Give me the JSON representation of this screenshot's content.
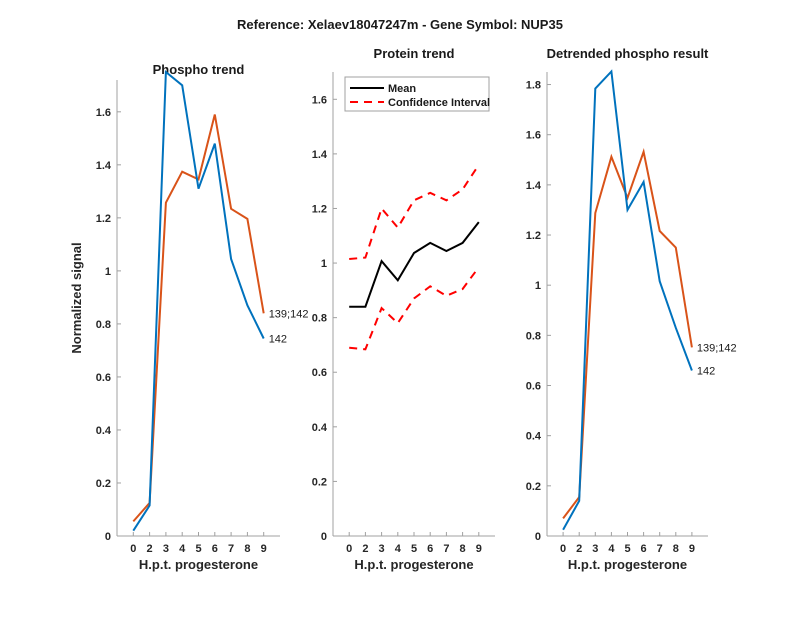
{
  "title": "Reference:  Xelaev18047247m - Gene Symbol:  NUP35",
  "colors": {
    "series_a": "#d95319",
    "series_b": "#0072bd",
    "mean": "#000000",
    "ci": "#ff0000",
    "axis": "#a0a0a0"
  },
  "chart_data": [
    {
      "type": "line",
      "title": "Phospho trend",
      "xlabel": "H.p.t. progesterone",
      "ylabel": "Normalized signal",
      "categories": [
        "0",
        "2",
        "3",
        "4",
        "5",
        "6",
        "7",
        "8",
        "9"
      ],
      "ylim": [
        0,
        1.72
      ],
      "yticks": [
        0,
        0.2,
        0.4,
        0.6,
        0.8,
        1,
        1.2,
        1.4,
        1.6
      ],
      "ytick_labels": [
        "0",
        "0.2",
        "0.4",
        "0.6",
        "0.8",
        "1",
        "1.2",
        "1.4",
        "1.6"
      ],
      "grid": false,
      "series": [
        {
          "name": "139;142",
          "color": "#d95319",
          "values": [
            0.055,
            0.125,
            1.257,
            1.374,
            1.345,
            1.59,
            1.234,
            1.196,
            0.84
          ]
        },
        {
          "name": "142",
          "color": "#0072bd",
          "values": [
            0.02,
            0.115,
            1.75,
            1.7,
            1.31,
            1.48,
            1.045,
            0.87,
            0.745
          ]
        }
      ]
    },
    {
      "type": "line",
      "title": "Protein trend",
      "xlabel": "H.p.t. progesterone",
      "ylabel": "",
      "categories": [
        "0",
        "2",
        "3",
        "4",
        "5",
        "6",
        "7",
        "8",
        "9"
      ],
      "ylim": [
        0,
        1.7
      ],
      "yticks": [
        0,
        0.2,
        0.4,
        0.6,
        0.8,
        1,
        1.2,
        1.4,
        1.6
      ],
      "ytick_labels": [
        "0",
        "0.2",
        "0.4",
        "0.6",
        "0.8",
        "1",
        "1.2",
        "1.4",
        "1.6"
      ],
      "grid": false,
      "legend": {
        "placement": "top-left",
        "entries": [
          "Mean",
          "Confidence Interval"
        ]
      },
      "series": [
        {
          "name": "Mean",
          "color": "#000000",
          "style": "solid",
          "values": [
            0.84,
            0.84,
            1.007,
            0.937,
            1.037,
            1.074,
            1.044,
            1.074,
            1.15
          ]
        },
        {
          "name": "Confidence Interval (upper)",
          "color": "#ff0000",
          "style": "dashed",
          "values": [
            1.015,
            1.02,
            1.2,
            1.13,
            1.23,
            1.257,
            1.23,
            1.27,
            1.36
          ]
        },
        {
          "name": "Confidence Interval (lower)",
          "color": "#ff0000",
          "style": "dashed",
          "values": [
            0.69,
            0.684,
            0.835,
            0.78,
            0.87,
            0.915,
            0.88,
            0.905,
            0.985
          ]
        }
      ]
    },
    {
      "type": "line",
      "title": "Detrended phospho result",
      "xlabel": "H.p.t. progesterone",
      "ylabel": "",
      "categories": [
        "0",
        "2",
        "3",
        "4",
        "5",
        "6",
        "7",
        "8",
        "9"
      ],
      "ylim": [
        0,
        1.85
      ],
      "yticks": [
        0,
        0.2,
        0.4,
        0.6,
        0.8,
        1,
        1.2,
        1.4,
        1.6,
        1.8
      ],
      "ytick_labels": [
        "0",
        "0.2",
        "0.4",
        "0.6",
        "0.8",
        "1",
        "1.2",
        "1.4",
        "1.6",
        "1.8"
      ],
      "grid": false,
      "series": [
        {
          "name": "139;142",
          "color": "#d95319",
          "values": [
            0.07,
            0.155,
            1.288,
            1.512,
            1.348,
            1.532,
            1.216,
            1.15,
            0.752
          ]
        },
        {
          "name": "142",
          "color": "#0072bd",
          "values": [
            0.025,
            0.14,
            1.784,
            1.852,
            1.3,
            1.412,
            1.016,
            0.83,
            0.66
          ]
        }
      ]
    }
  ]
}
